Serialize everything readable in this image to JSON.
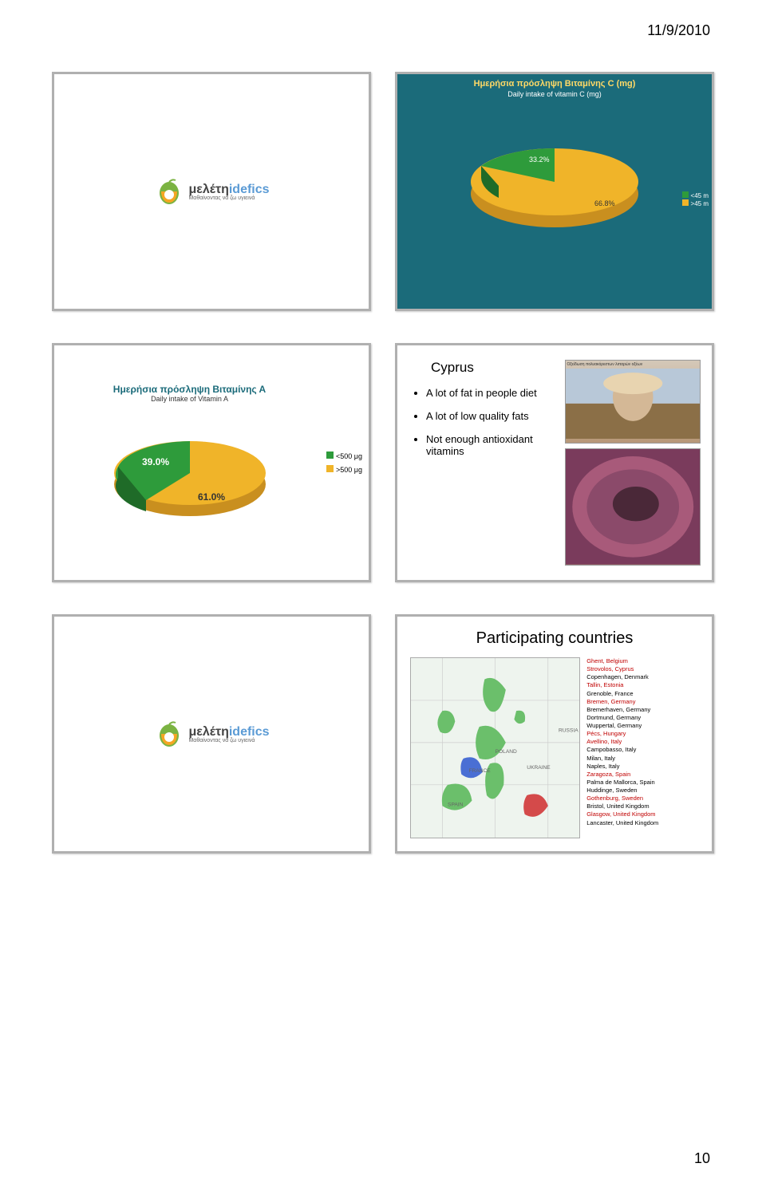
{
  "header": {
    "date": "11/9/2010",
    "page_number": "10"
  },
  "logo": {
    "greek": "μελέτη",
    "latin": "idefics",
    "tagline": "Μαθαίνοντας να ζω υγιεινά"
  },
  "slide1": {
    "title_greek": "Ημερήσια πρόσληψη Βιταμίνης C (mg)",
    "title_en": "Daily intake of vitamin C (mg)",
    "pie": {
      "slices": [
        {
          "label": "<45 m",
          "value": 33.2,
          "color": "#2e9b3b"
        },
        {
          "label": ">45 m",
          "value": 66.8,
          "color": "#f0b429"
        }
      ]
    },
    "label_small": "33.2%",
    "label_big": "66.8%",
    "background_color": "#1b6b7a"
  },
  "slide3": {
    "title_greek": "Ημερήσια πρόσληψη Βιταμίνης Α",
    "title_en": "Daily intake of Vitamin A",
    "pie": {
      "slices": [
        {
          "label": "<500 μg",
          "value": 39.0,
          "color": "#2e9b3b"
        },
        {
          "label": ">500 μg",
          "value": 61.0,
          "color": "#f0b429"
        }
      ]
    },
    "pct_a": "39.0%",
    "pct_b": "61.0%",
    "legend_a": "<500 μg",
    "legend_b": ">500 μg"
  },
  "slide4": {
    "title": "Cyprus",
    "bullets": [
      "A lot of fat in people diet",
      "A lot of low quality fats",
      "Not enough antioxidant vitamins"
    ],
    "img1_caption": "Οξείδωση πολυακόρεστων λιπαρών οξέων"
  },
  "slide6": {
    "title": "Participating countries",
    "countries": [
      {
        "name": "Ghent, Belgium",
        "red": true
      },
      {
        "name": "Strovolos, Cyprus",
        "red": true
      },
      {
        "name": "Copenhagen, Denmark",
        "red": false
      },
      {
        "name": "Tallin, Estonia",
        "red": true
      },
      {
        "name": "Grenoble, France",
        "red": false
      },
      {
        "name": "Bremen, Germany",
        "red": true
      },
      {
        "name": "Bremerhaven, Germany",
        "red": false
      },
      {
        "name": "Dortmund, Germany",
        "red": false
      },
      {
        "name": "Wuppertal, Germany",
        "red": false
      },
      {
        "name": "Pécs, Hungary",
        "red": true
      },
      {
        "name": "Avellino, Italy",
        "red": true
      },
      {
        "name": "Campobasso, Italy",
        "red": false
      },
      {
        "name": "Milan, Italy",
        "red": false
      },
      {
        "name": "Naples, Italy",
        "red": false
      },
      {
        "name": "Zaragoza, Spain",
        "red": true
      },
      {
        "name": "Palma de Mallorca, Spain",
        "red": false
      },
      {
        "name": "Huddinge, Sweden",
        "red": false
      },
      {
        "name": "Gothenburg, Sweden",
        "red": true
      },
      {
        "name": "Bristol, United Kingdom",
        "red": false
      },
      {
        "name": "Glasgow, United Kingdom",
        "red": true
      },
      {
        "name": "Lancaster, United Kingdom",
        "red": false
      }
    ]
  },
  "colors": {
    "teal": "#1b6b7a",
    "green": "#2e9b3b",
    "orange": "#f0b429",
    "yellow_text": "#ffd966",
    "red_text": "#c00000"
  }
}
